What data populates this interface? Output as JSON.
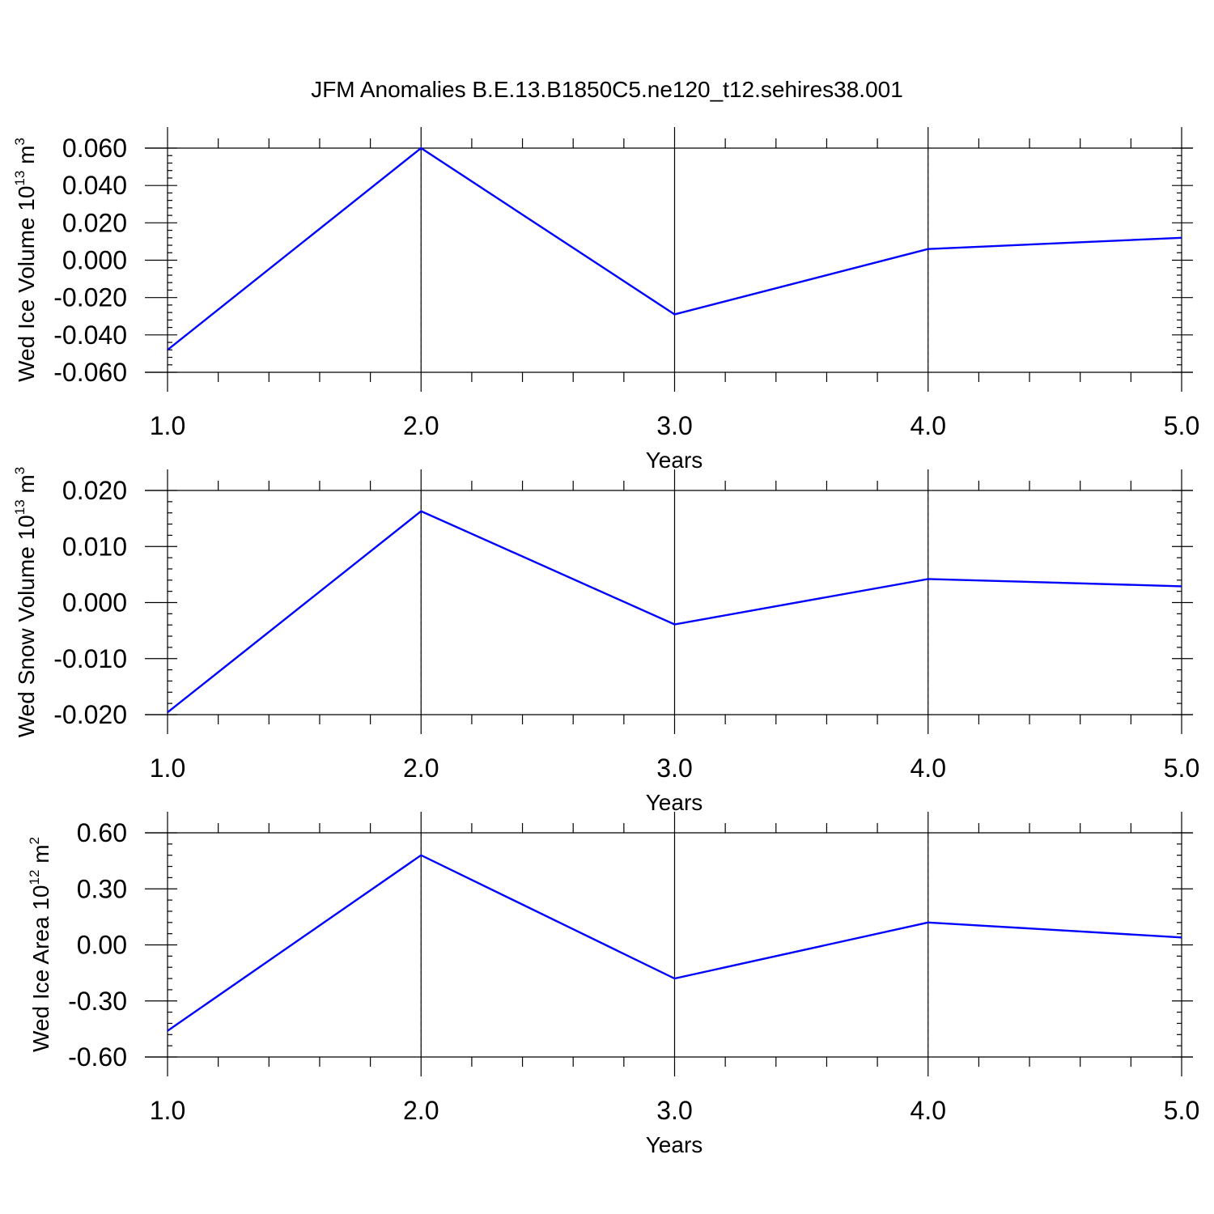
{
  "title": "JFM Anomalies B.E.13.B1850C5.ne120_t12.sehires38.001",
  "series_color": "#0000ff",
  "chart_data": [
    {
      "type": "line",
      "x": [
        1.0,
        2.0,
        3.0,
        4.0,
        5.0
      ],
      "values": [
        -0.048,
        0.06,
        -0.029,
        0.006,
        0.012
      ],
      "xlabel": "Years",
      "ylabel": {
        "text": "Wed Ice Volume 10",
        "exponent": "13",
        "unit": " m",
        "unit_exponent": "3"
      },
      "xlim": [
        1.0,
        5.0
      ],
      "ylim": [
        -0.06,
        0.06
      ],
      "xticks": [
        "1.0",
        "2.0",
        "3.0",
        "4.0",
        "5.0"
      ],
      "yticks": [
        "0.060",
        "0.040",
        "0.020",
        "0.000",
        "-0.020",
        "-0.040",
        "-0.060"
      ],
      "ytick_values": [
        0.06,
        0.04,
        0.02,
        0.0,
        -0.02,
        -0.04,
        -0.06
      ],
      "grid": "vertical dashed at major x ticks"
    },
    {
      "type": "line",
      "x": [
        1.0,
        2.0,
        3.0,
        4.0,
        5.0
      ],
      "values": [
        -0.0196,
        0.0163,
        -0.0039,
        0.0042,
        0.0029
      ],
      "xlabel": "Years",
      "ylabel": {
        "text": "Wed Snow Volume 10",
        "exponent": "13",
        "unit": " m",
        "unit_exponent": "3"
      },
      "xlim": [
        1.0,
        5.0
      ],
      "ylim": [
        -0.02,
        0.02
      ],
      "xticks": [
        "1.0",
        "2.0",
        "3.0",
        "4.0",
        "5.0"
      ],
      "yticks": [
        "0.020",
        "0.010",
        "0.000",
        "-0.010",
        "-0.020"
      ],
      "ytick_values": [
        0.02,
        0.01,
        0.0,
        -0.01,
        -0.02
      ],
      "grid": "vertical dashed at major x ticks"
    },
    {
      "type": "line",
      "x": [
        1.0,
        2.0,
        3.0,
        4.0,
        5.0
      ],
      "values": [
        -0.46,
        0.48,
        -0.18,
        0.12,
        0.04
      ],
      "xlabel": "Years",
      "ylabel": {
        "text": "Wed Ice Area 10",
        "exponent": "12",
        "unit": " m",
        "unit_exponent": "2"
      },
      "xlim": [
        1.0,
        5.0
      ],
      "ylim": [
        -0.6,
        0.6
      ],
      "xticks": [
        "1.0",
        "2.0",
        "3.0",
        "4.0",
        "5.0"
      ],
      "yticks": [
        "0.60",
        "0.30",
        "0.00",
        "-0.30",
        "-0.60"
      ],
      "ytick_values": [
        0.6,
        0.3,
        0.0,
        -0.3,
        -0.6
      ],
      "grid": "vertical dashed at major x ticks"
    }
  ]
}
